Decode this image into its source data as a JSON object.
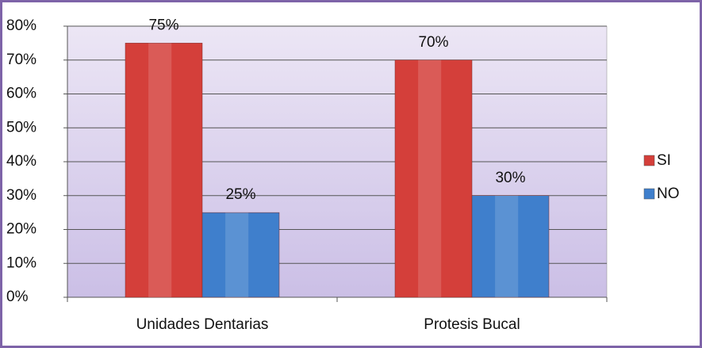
{
  "chart_data": {
    "type": "bar",
    "categories": [
      "Unidades Dentarias",
      "Protesis Bucal"
    ],
    "series": [
      {
        "name": "SI",
        "color": "#d43f3a",
        "values": [
          75,
          70
        ],
        "value_labels": [
          "75%",
          "70%"
        ]
      },
      {
        "name": "NO",
        "color": "#3f7fcc",
        "values": [
          25,
          30
        ],
        "value_labels": [
          "25%",
          "30%"
        ]
      }
    ],
    "ylim": [
      0,
      80
    ],
    "yticks": [
      {
        "value": 0,
        "label": "0%"
      },
      {
        "value": 10,
        "label": "10%"
      },
      {
        "value": 20,
        "label": "20%"
      },
      {
        "value": 30,
        "label": "30%"
      },
      {
        "value": 40,
        "label": "40%"
      },
      {
        "value": 50,
        "label": "50%"
      },
      {
        "value": 60,
        "label": "60%"
      },
      {
        "value": 70,
        "label": "70%"
      },
      {
        "value": 80,
        "label": "80%"
      }
    ],
    "grid": true,
    "legend": "right"
  }
}
